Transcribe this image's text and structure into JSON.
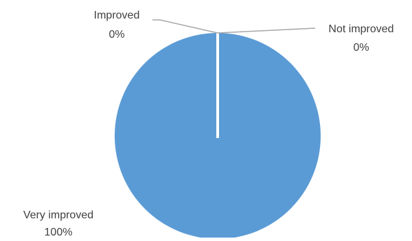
{
  "chart_data": {
    "type": "pie",
    "title": "",
    "categories": [
      "Very improved",
      "Improved",
      "Not improved"
    ],
    "values": [
      100,
      0,
      0
    ],
    "value_labels": [
      "100%",
      "0%",
      "0%"
    ],
    "colors": [
      "#5B9BD5",
      "#5B9BD5",
      "#5B9BD5"
    ],
    "leader_line_color": "#A6A6A6",
    "legend": "none"
  }
}
